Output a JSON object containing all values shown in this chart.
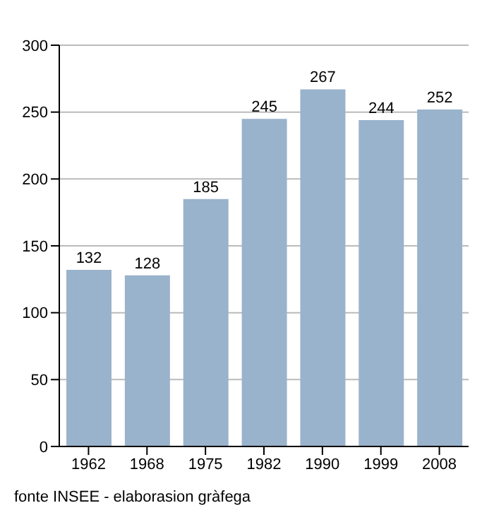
{
  "chart_data": {
    "type": "bar",
    "categories": [
      "1962",
      "1968",
      "1975",
      "1982",
      "1990",
      "1999",
      "2008"
    ],
    "values": [
      132,
      128,
      185,
      245,
      267,
      244,
      252
    ],
    "color": "#9ab3cc",
    "ylim": [
      0,
      300
    ],
    "yticks": [
      0,
      50,
      100,
      150,
      200,
      250,
      300
    ],
    "grid": "y",
    "data_labels": true,
    "annotations": [
      "fonte INSEE - elaborasion gràfega"
    ]
  }
}
